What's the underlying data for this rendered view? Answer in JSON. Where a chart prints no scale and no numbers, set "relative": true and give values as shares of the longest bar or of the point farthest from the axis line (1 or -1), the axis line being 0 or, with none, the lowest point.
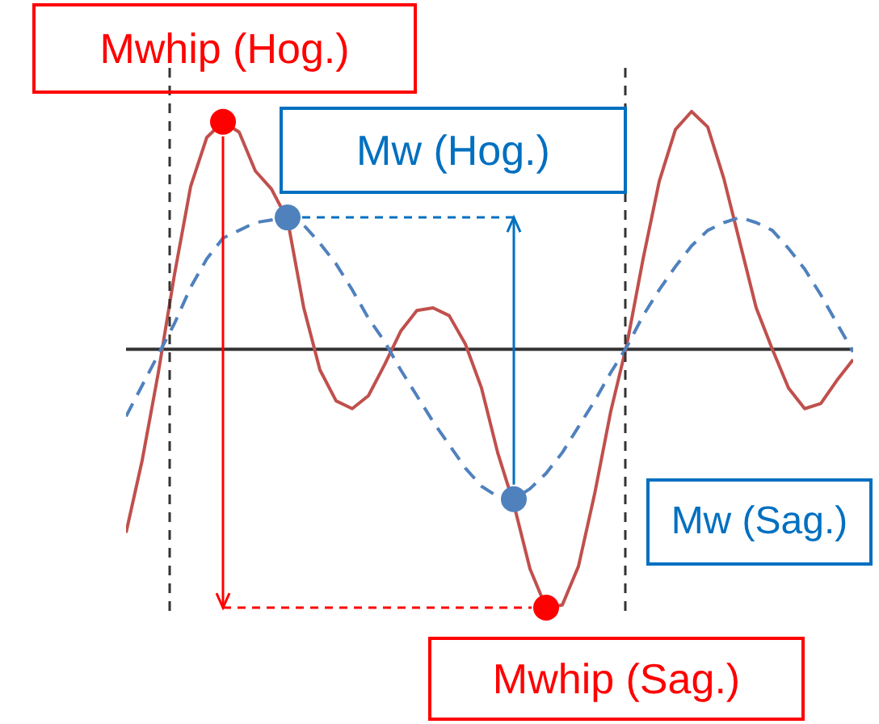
{
  "chart_data": {
    "type": "line",
    "relative": true,
    "grid": false,
    "legend": false,
    "categories": [
      null,
      null,
      null,
      null,
      null,
      null,
      null,
      null,
      null,
      null,
      null,
      null,
      null,
      null,
      null,
      null,
      null,
      null,
      null,
      null,
      null,
      null,
      null,
      null,
      null,
      null,
      null,
      null,
      null,
      null,
      null,
      null,
      null,
      null,
      null,
      null,
      null,
      null,
      null,
      null,
      null,
      null,
      null,
      null,
      null,
      null
    ],
    "series": [
      {
        "color": "#c0504d",
        "line_style": "solid",
        "values": [
          -0.71,
          -0.43,
          -0.09,
          0.29,
          0.63,
          0.82,
          0.88,
          0.84,
          0.69,
          0.62,
          0.5,
          0.16,
          -0.08,
          -0.2,
          -0.23,
          -0.18,
          -0.06,
          0.07,
          0.15,
          0.16,
          0.13,
          0.02,
          -0.15,
          -0.4,
          -0.6,
          -0.85,
          -1,
          -0.99,
          -0.84,
          -0.56,
          -0.24,
          0.02,
          0.35,
          0.65,
          0.85,
          0.92,
          0.86,
          0.66,
          0.41,
          0.16,
          0,
          -0.15,
          -0.23,
          -0.21,
          -0.12,
          -0.04
        ]
      },
      {
        "color": "#4f81bd",
        "line_style": "dashed",
        "values": [
          -0.26,
          -0.14,
          -0.02,
          0.1,
          0.24,
          0.35,
          0.43,
          0.46,
          0.49,
          0.5,
          0.51,
          0.48,
          0.41,
          0.33,
          0.23,
          0.12,
          0.03,
          -0.08,
          -0.18,
          -0.28,
          -0.37,
          -0.46,
          -0.53,
          -0.57,
          -0.58,
          -0.54,
          -0.48,
          -0.4,
          -0.3,
          -0.2,
          -0.09,
          0.01,
          0.13,
          0.23,
          0.32,
          0.4,
          0.46,
          0.49,
          0.51,
          0.49,
          0.46,
          0.39,
          0.31,
          0.21,
          0.1,
          -0.01
        ]
      }
    ],
    "annotations": [
      "Mwhip (Hog.)",
      "Mw (Hog.)",
      "Mw (Sag.)",
      "Mwhip (Sag.)"
    ]
  }
}
